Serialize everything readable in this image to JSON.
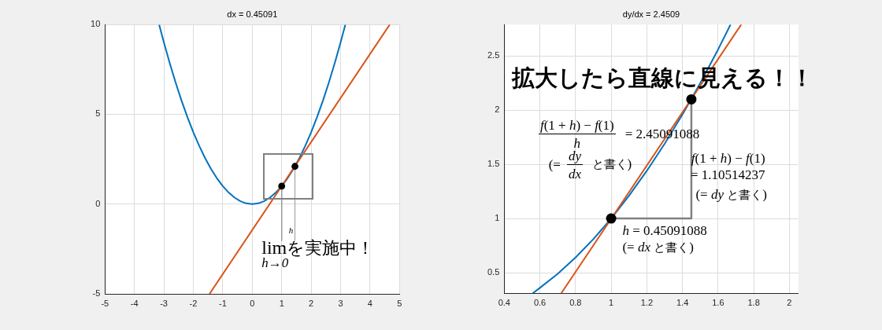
{
  "chart_data": [
    {
      "type": "line",
      "title": "dx = 0.45091",
      "xlim": [
        -5,
        5
      ],
      "xticks": [
        -5,
        -4,
        -3,
        -2,
        -1,
        0,
        1,
        2,
        3,
        4,
        5
      ],
      "ylim": [
        -5,
        10
      ],
      "yticks": [
        -5,
        0,
        5,
        10
      ],
      "grid": true,
      "series": [
        {
          "type": "line",
          "color": "#0072bd",
          "x": [
            -3.16,
            -3,
            -2.8,
            -2.6,
            -2.4,
            -2.2,
            -2,
            -1.8,
            -1.6,
            -1.4,
            -1.2,
            -1,
            -0.8,
            -0.6,
            -0.4,
            -0.2,
            0,
            0.2,
            0.4,
            0.6,
            0.8,
            1,
            1.2,
            1.4,
            1.6,
            1.8,
            2,
            2.2,
            2.4,
            2.6,
            2.8,
            3,
            3.16
          ],
          "values": [
            9.99,
            9,
            7.84,
            6.76,
            5.76,
            4.84,
            4,
            3.24,
            2.56,
            1.96,
            1.44,
            1,
            0.64,
            0.36,
            0.16,
            0.04,
            0,
            0.04,
            0.16,
            0.36,
            0.64,
            1,
            1.44,
            1.96,
            2.56,
            3.24,
            4,
            4.84,
            5.76,
            6.76,
            7.84,
            9,
            9.99
          ]
        },
        {
          "type": "line",
          "color": "#d95319",
          "x": [
            -1.45,
            4.67
          ],
          "values": [
            -5,
            10
          ]
        },
        {
          "type": "line",
          "color": "#999999",
          "x": [
            1,
            1,
            1.225,
            1.45,
            1.45
          ],
          "values": [
            1,
            -2.05,
            null,
            -2.05,
            2.1
          ]
        },
        {
          "type": "scatter",
          "marker": "circle",
          "color": "#000000",
          "x": [
            1,
            1.45
          ],
          "values": [
            1,
            2.1
          ]
        }
      ],
      "annotations": [
        "h",
        "lim$_{h→0}$を実施中！"
      ]
    },
    {
      "type": "line",
      "title": "dy/dx = 2.4509",
      "xlim": [
        0.4,
        2.05
      ],
      "xticks": [
        0.4,
        0.6,
        0.8,
        1,
        1.2,
        1.4,
        1.6,
        1.8,
        2
      ],
      "ylim": [
        0.31,
        2.79
      ],
      "yticks": [
        0.5,
        1,
        1.5,
        2,
        2.5
      ],
      "grid": true,
      "series": [
        {
          "type": "line",
          "color": "#0072bd",
          "x": [
            0.56,
            0.6,
            0.7,
            0.8,
            0.9,
            1,
            1.1,
            1.2,
            1.3,
            1.4,
            1.5,
            1.6,
            1.67
          ],
          "values": [
            0.31,
            0.36,
            0.49,
            0.64,
            0.81,
            1,
            1.21,
            1.44,
            1.69,
            1.96,
            2.25,
            2.56,
            2.79
          ]
        },
        {
          "type": "line",
          "color": "#d95319",
          "x": [
            0.72,
            1.73
          ],
          "values": [
            0.31,
            2.79
          ]
        },
        {
          "type": "line",
          "color": "#808080",
          "x": [
            1,
            1.45,
            1.45
          ],
          "values": [
            1,
            1,
            2.1
          ]
        },
        {
          "type": "scatter",
          "marker": "circle",
          "color": "#000000",
          "x": [
            1,
            1.45
          ],
          "values": [
            1,
            2.1
          ]
        }
      ],
      "annotations": [
        "拡大したら直線に見える！！",
        "f(1 + h) − f(1)",
        "h",
        "= 2.45091088",
        "(=",
        "dy",
        "dx",
        "と書く)",
        "f(1 + h) − f(1)\n= 1.10514237",
        "(= dy と書く)",
        "h = 0.45091088\n(= dx と書く)"
      ]
    }
  ]
}
